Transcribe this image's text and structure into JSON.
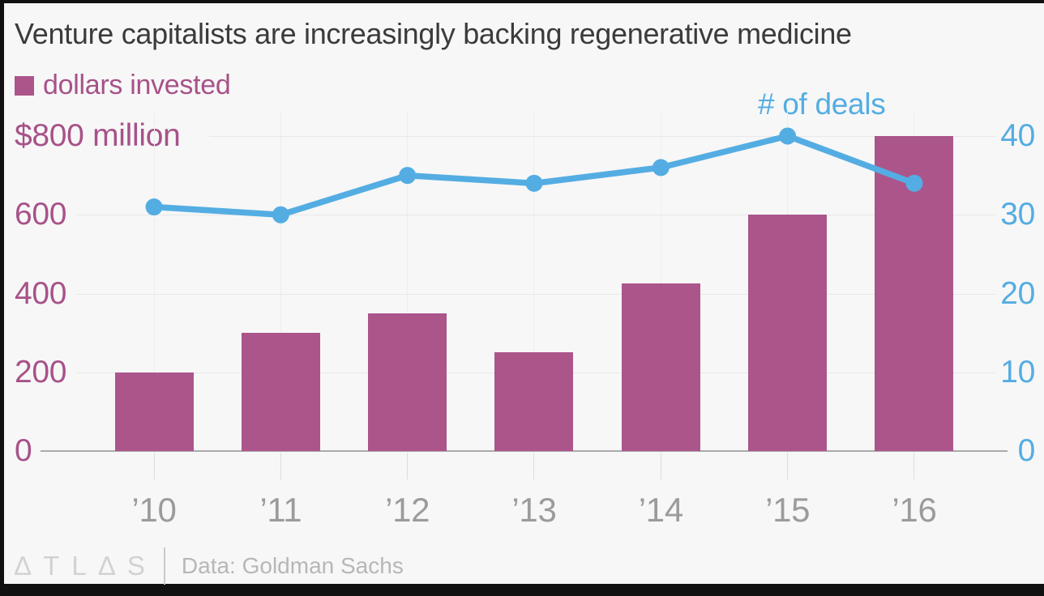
{
  "header": {
    "title": "Venture capitalists are increasingly backing regenerative medicine"
  },
  "legend": {
    "bars_label": "dollars invested",
    "line_label": "# of deals"
  },
  "footer": {
    "logo": "∆TL∆S",
    "source": "Data: Goldman Sachs"
  },
  "colors": {
    "background": "#F7F7F7",
    "frame": "#111111",
    "bar": "#AB558B",
    "line": "#54ADE2",
    "purple_text": "#A75289",
    "blue_text": "#54ADE2",
    "title_text": "#3B3B3B",
    "x_label_text": "#9B9B9B",
    "h_gridline": "#E8E8E8",
    "v_gridline": "#EDEDED",
    "axis_baseline": "#AAAAAA",
    "tick": "#DCDCDC",
    "logo_text": "#D2D2D2",
    "divider": "#C9C9C9",
    "source_text": "#B7B7B7"
  },
  "chart_data": {
    "type": "bar+line",
    "title": "Venture capitalists are increasingly backing regenerative medicine",
    "categories": [
      "’10",
      "’11",
      "’12",
      "’13",
      "’14",
      "’15",
      "’16"
    ],
    "series": [
      {
        "name": "dollars invested",
        "type": "bar",
        "unit": "million USD",
        "values": [
          200,
          300,
          350,
          250,
          425,
          600,
          800
        ]
      },
      {
        "name": "# of deals",
        "type": "line",
        "unit": "deals",
        "values": [
          31,
          30,
          35,
          34,
          36,
          40,
          34
        ]
      }
    ],
    "left_axis": {
      "range": [
        0,
        800
      ],
      "ticks": [
        0,
        200,
        400,
        600,
        800
      ],
      "labels": [
        "0",
        "200",
        "400",
        "600"
      ],
      "top_label": "$800 million"
    },
    "right_axis": {
      "range": [
        0,
        40
      ],
      "ticks": [
        0,
        10,
        20,
        30,
        40
      ],
      "labels": [
        "0",
        "10",
        "20",
        "30",
        "40"
      ]
    },
    "grid": true,
    "legend_position": "top-left",
    "source": "Data: Goldman Sachs"
  }
}
